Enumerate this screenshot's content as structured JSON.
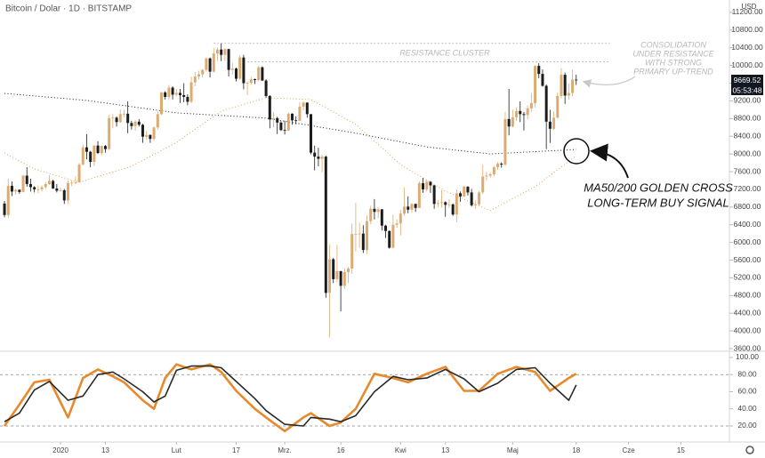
{
  "chart_data": [
    {
      "type": "candlestick",
      "title": "Bitcoin / Dolar · 1D · BITSTAMP",
      "y_label": "USD",
      "last_price": 9669.52,
      "countdown": "05:53:48",
      "up_color": "#dcab72",
      "down_color": "#1c1c1c",
      "xlim": [
        -1.2,
        194
      ],
      "ylim": [
        3580,
        11480
      ],
      "xticks": [
        {
          "value": 15,
          "label": "2020"
        },
        {
          "value": 27,
          "label": "13"
        },
        {
          "value": 46,
          "label": "Lut"
        },
        {
          "value": 62,
          "label": "17"
        },
        {
          "value": 75,
          "label": "Mrz."
        },
        {
          "value": 90,
          "label": "16"
        },
        {
          "value": 106,
          "label": "Kwi"
        },
        {
          "value": 118,
          "label": "13"
        },
        {
          "value": 136,
          "label": "Maj"
        },
        {
          "value": 153,
          "label": "18"
        },
        {
          "value": 167,
          "label": "Cze"
        },
        {
          "value": 181,
          "label": "15"
        }
      ],
      "yticks": [
        {
          "value": 3600,
          "label": "3600.00"
        },
        {
          "value": 4000,
          "label": "4000.00"
        },
        {
          "value": 4400,
          "label": "4400.00"
        },
        {
          "value": 4800,
          "label": "4800.00"
        },
        {
          "value": 5200,
          "label": "5200.00"
        },
        {
          "value": 5600,
          "label": "5600.00"
        },
        {
          "value": 6000,
          "label": "6000.00"
        },
        {
          "value": 6400,
          "label": "6400.00"
        },
        {
          "value": 6800,
          "label": "6800.00"
        },
        {
          "value": 7200,
          "label": "7200.00"
        },
        {
          "value": 7600,
          "label": "7600.00"
        },
        {
          "value": 8000,
          "label": "8000.00"
        },
        {
          "value": 8400,
          "label": "8400.00"
        },
        {
          "value": 8800,
          "label": "8800.00"
        },
        {
          "value": 9200,
          "label": "9200.00"
        },
        {
          "value": 9600,
          "label": "9600.00"
        },
        {
          "value": 10000,
          "label": "10000.00"
        },
        {
          "value": 10400,
          "label": "10400.00"
        },
        {
          "value": 10800,
          "label": "10800.00"
        },
        {
          "value": 11200,
          "label": "11200.00"
        }
      ],
      "open": [
        6880,
        6620,
        7280,
        7150,
        7190,
        7140,
        7510,
        7320,
        7250,
        7200,
        7200,
        7250,
        7320,
        7390,
        7220,
        7170,
        7180,
        6950,
        7340,
        7350,
        7360,
        7760,
        8150,
        8050,
        7820,
        8190,
        8020,
        8180,
        8110,
        8810,
        8820,
        8720,
        8900,
        8910,
        8700,
        8630,
        8730,
        8660,
        8390,
        8430,
        8340,
        8600,
        8900,
        9390,
        9290,
        9500,
        9340,
        9380,
        9330,
        9290,
        9180,
        9620,
        9750,
        9800,
        9900,
        10160,
        9860,
        10270,
        10360,
        10240,
        10370,
        9900,
        9930,
        9700,
        10180,
        9600,
        9610,
        9690,
        9670,
        9960,
        9660,
        9310,
        8780,
        8810,
        8710,
        8540,
        8530,
        8910,
        8760,
        8750,
        9070,
        9160,
        8900,
        8030,
        7940,
        7890,
        7940,
        4860,
        5620,
        5170,
        5350,
        5020,
        5330,
        5410,
        6190,
        6190,
        6200,
        5830,
        6480,
        6760,
        6690,
        6750,
        6380,
        6260,
        5880,
        6400,
        6430,
        6650,
        6810,
        6740,
        6870,
        6780,
        7340,
        7200,
        7370,
        7290,
        6870,
        6890,
        6910,
        6850,
        6860,
        6630,
        7110,
        7040,
        7260,
        7130,
        6840,
        6860,
        7130,
        7490,
        7510,
        7540,
        7700,
        7780,
        7760,
        8790,
        8620,
        8830,
        8970,
        8900,
        8880,
        9030,
        9150,
        9990,
        9810,
        9540,
        8730,
        8570,
        8820,
        9310,
        9790,
        9320,
        9380,
        9680
      ],
      "high": [
        6940,
        7440,
        7380,
        7220,
        7200,
        7520,
        7700,
        7440,
        7270,
        7280,
        7290,
        7360,
        7520,
        7420,
        7320,
        7240,
        7210,
        7400,
        7400,
        7490,
        7800,
        8210,
        8450,
        8070,
        8200,
        8290,
        8190,
        8200,
        8880,
        8900,
        8850,
        9000,
        9000,
        9190,
        8750,
        8760,
        8790,
        8680,
        8520,
        8440,
        8620,
        8970,
        9400,
        9420,
        9560,
        9530,
        9470,
        9470,
        9600,
        9350,
        9750,
        9850,
        9880,
        9920,
        10180,
        10180,
        10390,
        10410,
        10500,
        10390,
        10380,
        10060,
        9950,
        10230,
        10240,
        9640,
        9740,
        9700,
        9990,
        9980,
        9690,
        9330,
        8950,
        8840,
        8740,
        8750,
        8940,
        8920,
        8850,
        9170,
        9190,
        9170,
        8900,
        8190,
        8140,
        7990,
        7960,
        5950,
        5650,
        5950,
        5360,
        5420,
        5450,
        6430,
        6890,
        6450,
        6390,
        6620,
        6830,
        6980,
        6800,
        6750,
        6400,
        6270,
        6620,
        6520,
        6740,
        7240,
        7040,
        6890,
        6880,
        7380,
        7460,
        7420,
        7390,
        7300,
        6960,
        7180,
        6930,
        6980,
        6880,
        7200,
        7150,
        7290,
        7270,
        7210,
        6950,
        7160,
        7760,
        7590,
        7580,
        7730,
        7820,
        7810,
        8950,
        9470,
        9000,
        9050,
        9190,
        8950,
        9100,
        9380,
        10000,
        10050,
        9910,
        9570,
        9000,
        8960,
        9390,
        9940,
        9840,
        9590,
        9900,
        9790
      ],
      "low": [
        6570,
        6560,
        7050,
        7080,
        7100,
        7130,
        7260,
        7150,
        7130,
        7110,
        7150,
        7220,
        7300,
        7210,
        7130,
        7150,
        6870,
        6870,
        7270,
        7320,
        7350,
        7740,
        7880,
        7700,
        7730,
        8000,
        7970,
        8030,
        8090,
        8580,
        8620,
        8700,
        8830,
        8470,
        8550,
        8520,
        8620,
        8250,
        8320,
        8250,
        8300,
        8550,
        8880,
        9230,
        9220,
        9230,
        9310,
        9150,
        9170,
        9100,
        9150,
        9530,
        9680,
        9730,
        9860,
        9730,
        9840,
        10100,
        10100,
        10100,
        9750,
        9800,
        9640,
        9680,
        9460,
        9330,
        9570,
        9580,
        9640,
        9650,
        9270,
        8580,
        8600,
        8450,
        8520,
        8440,
        8520,
        8660,
        8670,
        8740,
        8990,
        8820,
        7990,
        7630,
        7720,
        7580,
        4750,
        3850,
        5080,
        5100,
        4440,
        4950,
        5080,
        5290,
        5790,
        5880,
        5760,
        5740,
        6410,
        6520,
        6550,
        6270,
        6100,
        5860,
        5870,
        6330,
        6160,
        6600,
        6660,
        6670,
        6690,
        6780,
        7120,
        7150,
        7120,
        6760,
        6790,
        6790,
        6580,
        6780,
        6600,
        6460,
        6920,
        7030,
        7060,
        6810,
        6760,
        6820,
        7090,
        7400,
        7460,
        7500,
        7640,
        7690,
        7730,
        8420,
        8600,
        8750,
        8720,
        8530,
        8780,
        8950,
        9050,
        9710,
        9520,
        8110,
        8250,
        8540,
        8800,
        9260,
        9130,
        9230,
        9300,
        9560
      ],
      "close": [
        6620,
        7280,
        7150,
        7190,
        7140,
        7510,
        7320,
        7250,
        7200,
        7200,
        7250,
        7320,
        7390,
        7220,
        7170,
        7180,
        6950,
        7340,
        7350,
        7360,
        7760,
        8150,
        8050,
        7820,
        8190,
        8020,
        8180,
        8110,
        8810,
        8820,
        8720,
        8900,
        8910,
        8700,
        8630,
        8730,
        8660,
        8390,
        8430,
        8340,
        8600,
        8900,
        9390,
        9290,
        9500,
        9340,
        9380,
        9330,
        9290,
        9180,
        9620,
        9750,
        9800,
        9900,
        10160,
        9860,
        10270,
        10360,
        10240,
        10370,
        9900,
        9930,
        9700,
        10180,
        9600,
        9610,
        9690,
        9670,
        9960,
        9660,
        9310,
        8780,
        8810,
        8710,
        8540,
        8530,
        8910,
        8760,
        8750,
        9070,
        9160,
        8900,
        8030,
        7940,
        7890,
        7940,
        4860,
        5620,
        5170,
        5350,
        5020,
        5330,
        5410,
        6190,
        6190,
        6200,
        5830,
        6480,
        6760,
        6690,
        6750,
        6380,
        6260,
        5880,
        6400,
        6430,
        6650,
        6810,
        6740,
        6870,
        6780,
        7340,
        7200,
        7370,
        7290,
        6870,
        6890,
        6910,
        6850,
        6860,
        6630,
        7110,
        7040,
        7260,
        7130,
        6840,
        6860,
        7130,
        7490,
        7510,
        7540,
        7700,
        7780,
        7760,
        8790,
        8620,
        8830,
        8970,
        8900,
        8880,
        9030,
        9150,
        9990,
        9810,
        9540,
        8730,
        8570,
        8820,
        9310,
        9790,
        9320,
        9380,
        9680,
        9670
      ],
      "moving_averages": [
        {
          "color": "#1c1c1c",
          "x": [
            0,
            22,
            46,
            70,
            94,
            113,
            130,
            153
          ],
          "values": [
            9370,
            9210,
            8930,
            8810,
            8470,
            8160,
            8000,
            8100
          ]
        },
        {
          "color": "#e0a04a",
          "x": [
            0,
            8,
            20,
            34,
            46,
            58,
            70,
            82,
            94,
            106,
            118,
            130,
            142,
            153
          ],
          "values": [
            8020,
            7660,
            7360,
            7720,
            8260,
            8970,
            9270,
            9230,
            8670,
            7760,
            7160,
            6720,
            7260,
            7960
          ]
        }
      ],
      "resistance_lines": [
        {
          "value": 10500,
          "x": [
            56,
            162
          ]
        },
        {
          "value": 10080,
          "x": [
            65,
            162
          ]
        }
      ],
      "annotations": [
        [
          "RESISTANCE CLUSTER"
        ],
        [
          "CONSOLIDATION",
          "UNDER RESISTANCE",
          "WITH STRONG",
          "PRIMARY UP-TREND"
        ],
        [
          "MA50/200 GOLDEN CROSS",
          "LONG-TERM BUY SIGNAL"
        ]
      ]
    },
    {
      "type": "oscillator",
      "xlim": [
        -1.2,
        194
      ],
      "ylim": [
        1.3,
        106.2
      ],
      "yticks": [
        {
          "value": 20,
          "label": "20.00"
        },
        {
          "value": 40,
          "label": "40.00"
        },
        {
          "value": 60,
          "label": "60.00"
        },
        {
          "value": 80,
          "label": "80.00"
        },
        {
          "value": 100,
          "label": "100.00"
        }
      ],
      "levels": [
        80,
        20
      ],
      "x": [
        0,
        4,
        8,
        12,
        17,
        21,
        25,
        29,
        32,
        37,
        40,
        43,
        46,
        50,
        55,
        58,
        62,
        67,
        70,
        75,
        80,
        82,
        87,
        90,
        94,
        99,
        104,
        108,
        113,
        118,
        123,
        127,
        132,
        137,
        142,
        146,
        151,
        153
      ],
      "series": [
        {
          "color": "#e8892b",
          "values": [
            20,
            45,
            71,
            74,
            30,
            76,
            86,
            78,
            71,
            50,
            40,
            76,
            92,
            86,
            92,
            83,
            61,
            40,
            30,
            14,
            30,
            35,
            20,
            24,
            40,
            81,
            76,
            71,
            81,
            89,
            61,
            61,
            81,
            89,
            83,
            61,
            76,
            81
          ]
        },
        {
          "color": "#2a2a2a",
          "values": [
            25,
            35,
            62,
            72,
            50,
            55,
            80,
            83,
            75,
            60,
            48,
            55,
            85,
            90,
            90,
            88,
            72,
            52,
            38,
            22,
            20,
            30,
            28,
            25,
            32,
            60,
            78,
            74,
            76,
            86,
            75,
            60,
            70,
            86,
            88,
            70,
            50,
            68
          ]
        }
      ]
    }
  ]
}
